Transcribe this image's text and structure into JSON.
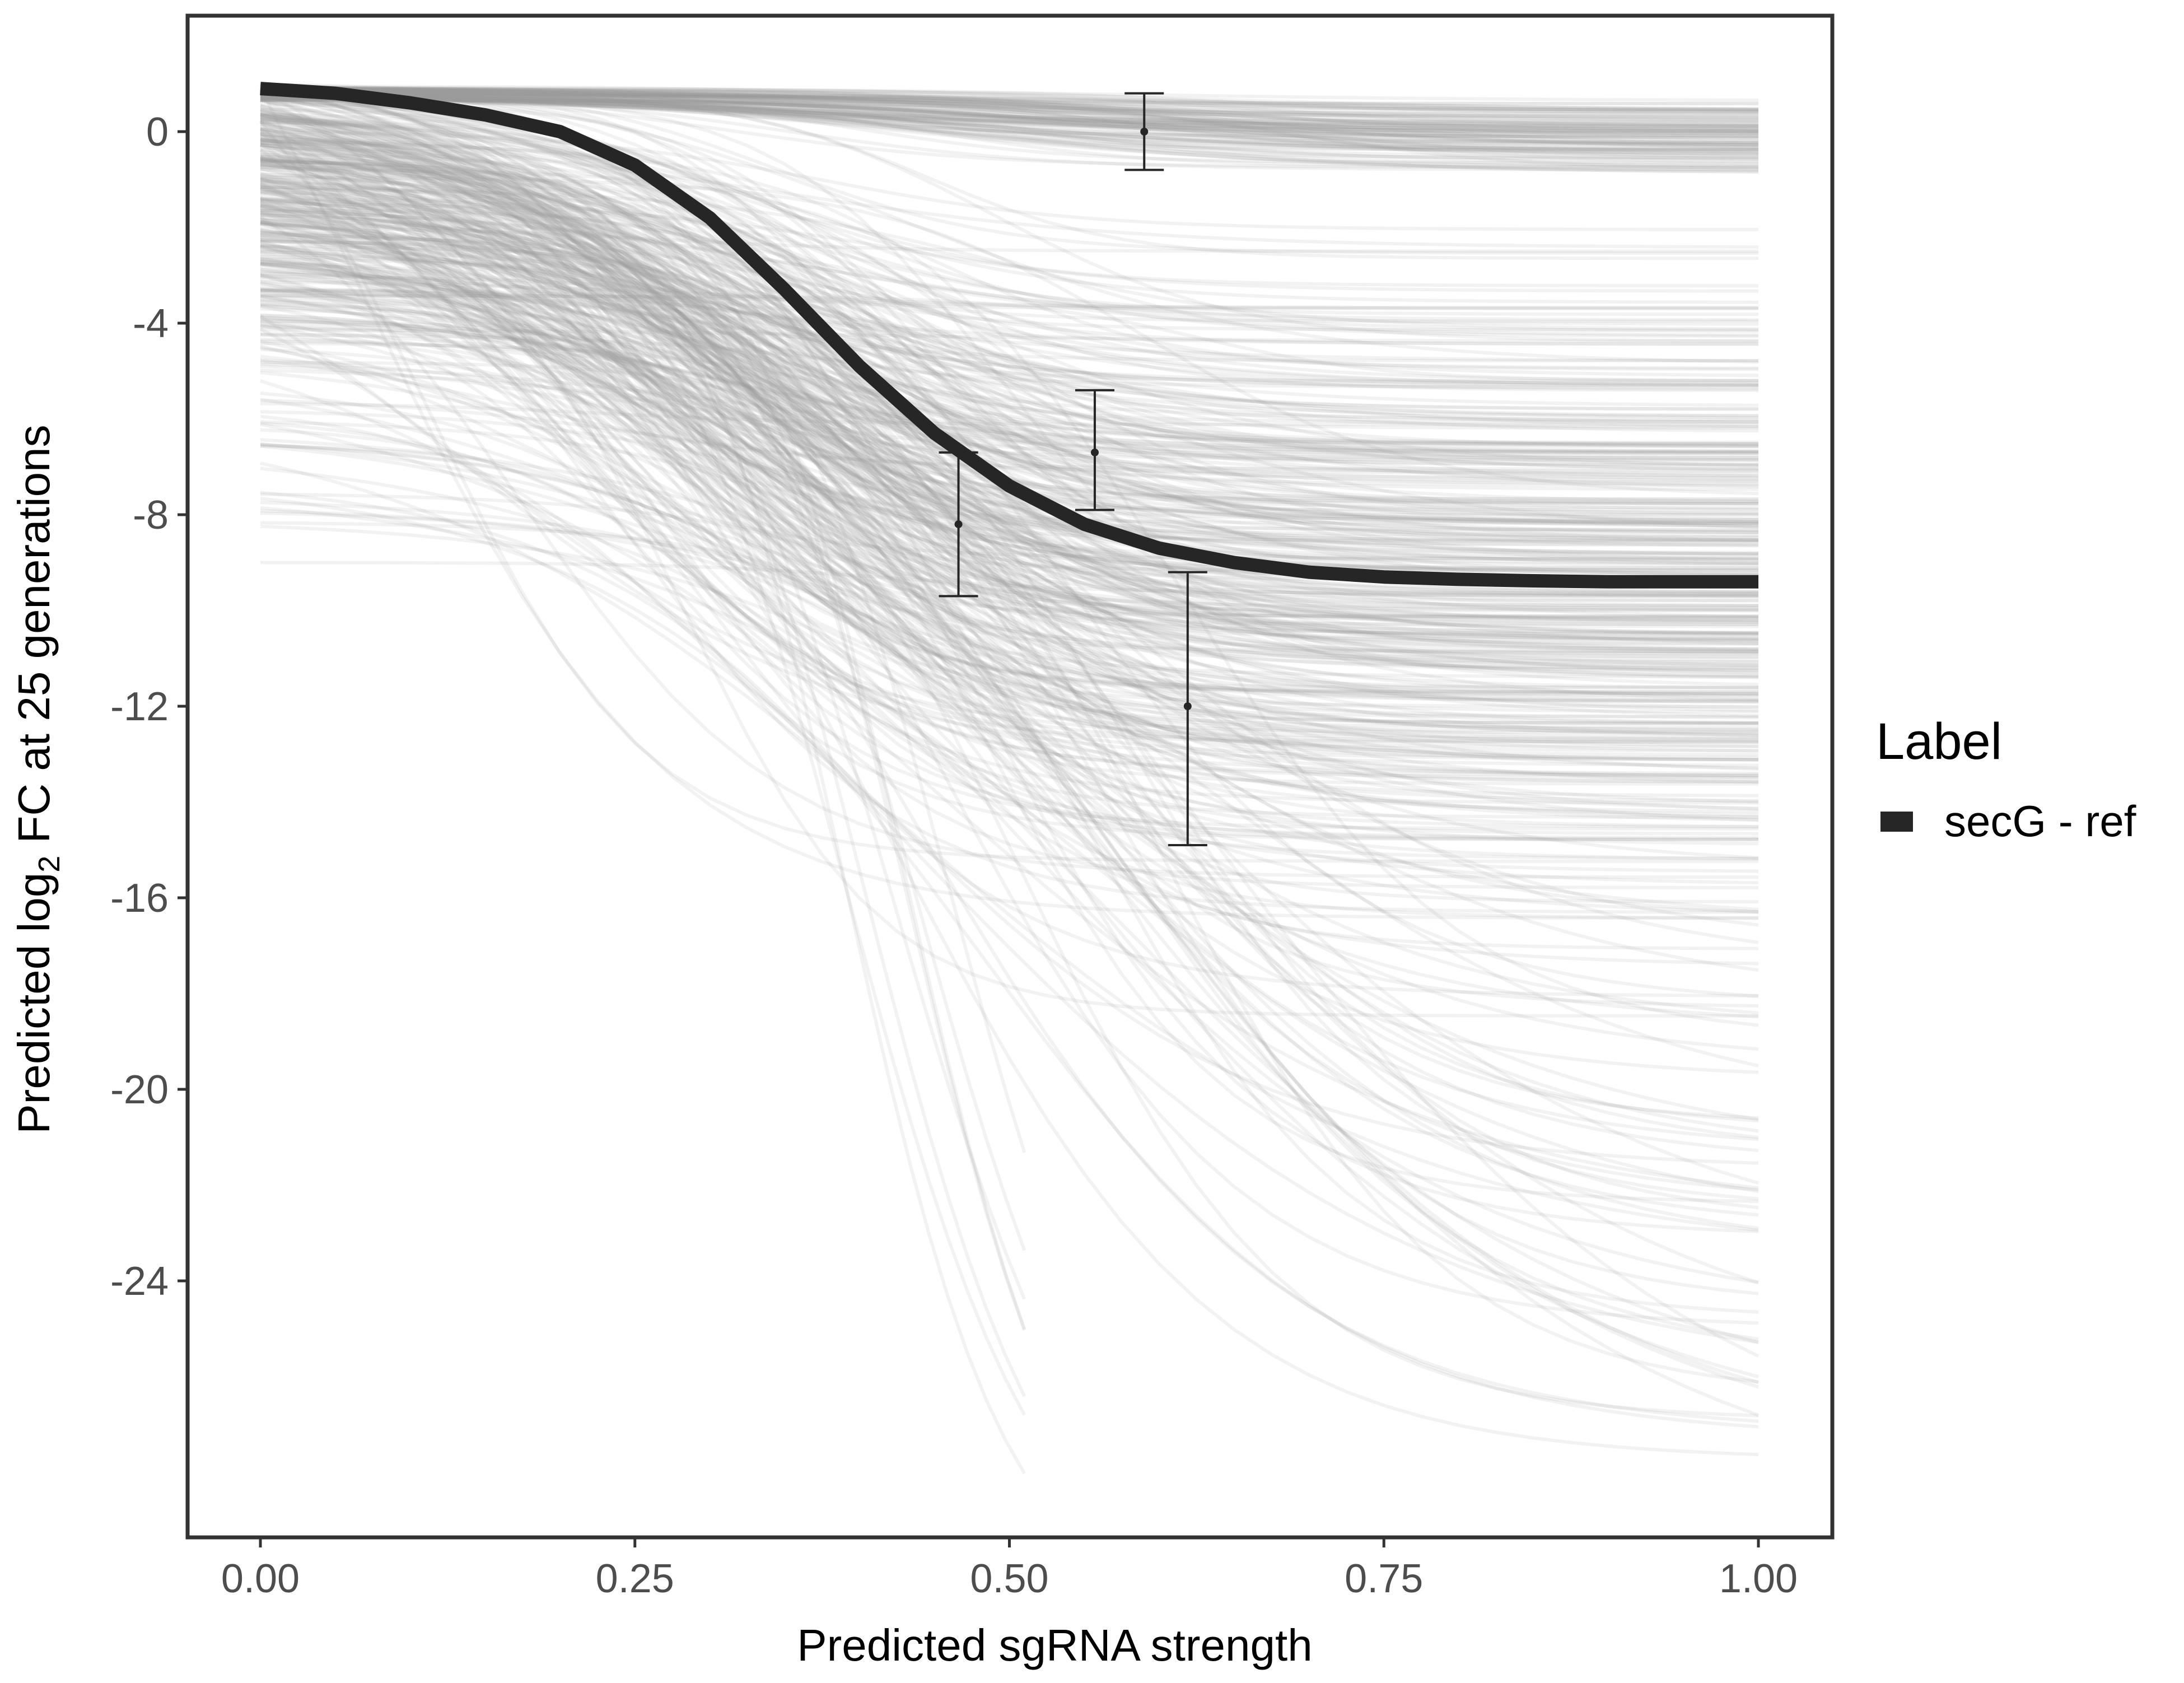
{
  "chart_data": {
    "type": "line",
    "title": "",
    "xlabel": "Predicted sgRNA strength",
    "ylabel_prefix": "Predicted  log",
    "ylabel_subscript": "2",
    "ylabel_suffix": " FC at 25 generations",
    "xlim": [
      -0.1,
      2.65
    ],
    "ylim": [
      -29.5,
      2.1
    ],
    "x_ticks": [
      0,
      0.25,
      0.5,
      0.75,
      1
    ],
    "x_tick_labels": [
      "0.00",
      "0.25",
      "0.50",
      "0.75",
      "1.00"
    ],
    "y_ticks": [
      0,
      -4,
      -8,
      -12,
      -16,
      -20,
      -24
    ],
    "y_tick_labels": [
      "0",
      "-4",
      "-8",
      "-12",
      "-16",
      "-20",
      "-24"
    ],
    "grid": false,
    "legend": {
      "title": "Label",
      "placement": "right",
      "entries": [
        {
          "name": "secG - ref",
          "color": "#262626"
        }
      ]
    },
    "main_curve": {
      "name": "secG - ref",
      "color": "#262626",
      "x": [
        0.0,
        0.05,
        0.1,
        0.15,
        0.2,
        0.25,
        0.3,
        0.35,
        0.4,
        0.45,
        0.5,
        0.55,
        0.6,
        0.65,
        0.7,
        0.75,
        0.8,
        0.85,
        0.9,
        0.95,
        1.0
      ],
      "y": [
        0.9,
        0.8,
        0.6,
        0.35,
        0.0,
        -0.7,
        -1.8,
        -3.3,
        -4.9,
        -6.3,
        -7.4,
        -8.2,
        -8.7,
        -9.0,
        -9.2,
        -9.3,
        -9.35,
        -9.38,
        -9.4,
        -9.4,
        -9.4
      ]
    },
    "posterior_draws": {
      "color": "#9e9e9e",
      "opacity": 0.13,
      "count": 520
    },
    "error_bars": [
      {
        "x": 0.466,
        "y": -8.2,
        "ymin": -9.7,
        "ymax": -6.7
      },
      {
        "x": 0.557,
        "y": -6.7,
        "ymin": -7.9,
        "ymax": -5.4
      },
      {
        "x": 0.59,
        "y": 0.0,
        "ymin": -0.8,
        "ymax": 0.8
      },
      {
        "x": 0.619,
        "y": -12.0,
        "ymin": -14.9,
        "ymax": -9.2
      }
    ]
  }
}
